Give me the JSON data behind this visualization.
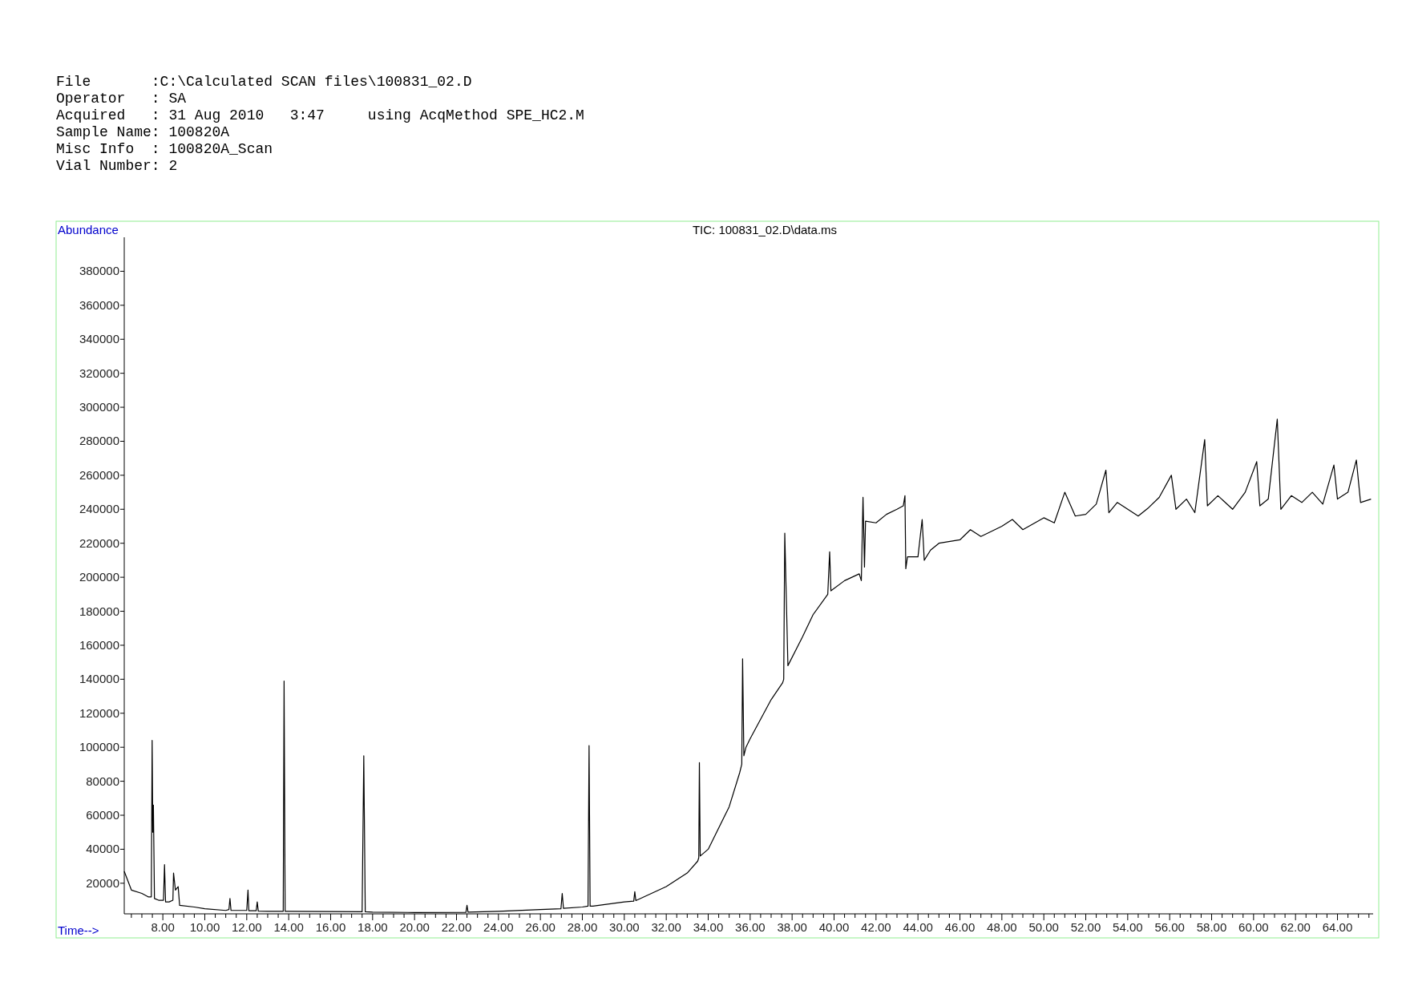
{
  "chart_data": {
    "type": "line",
    "title": "TIC: 100831_02.D\\data.ms",
    "xlabel": "Time-->",
    "ylabel": "Abundance",
    "annotations": [
      "File       :C:\\Calculated SCAN files\\100831_02.D",
      "Operator   : SA",
      "Acquired   : 31 Aug 2010   3:47     using AcqMethod SPE_HC2.M",
      "Sample Name: 100820A",
      "Misc Info  : 100820A_Scan",
      "Vial Number: 2"
    ],
    "x": [
      6.16,
      6.5,
      7.0,
      7.3,
      7.45,
      7.49,
      7.52,
      7.55,
      7.6,
      7.8,
      8.03,
      8.08,
      8.13,
      8.3,
      8.48,
      8.51,
      8.6,
      8.73,
      8.8,
      9.5,
      10.0,
      11.0,
      11.15,
      11.2,
      11.25,
      12.0,
      12.06,
      12.1,
      12.45,
      12.5,
      12.55,
      13.0,
      13.74,
      13.78,
      13.83,
      14.0,
      17.5,
      17.58,
      17.65,
      18.0,
      20.0,
      22.45,
      22.5,
      22.55,
      24.0,
      26.0,
      26.98,
      27.04,
      27.1,
      28.0,
      28.27,
      28.32,
      28.37,
      28.5,
      30.0,
      30.45,
      30.5,
      30.55,
      32.0,
      33.0,
      33.5,
      33.55,
      33.58,
      33.62,
      34.0,
      35.0,
      35.5,
      35.6,
      35.64,
      35.7,
      35.8,
      36.0,
      37.0,
      37.55,
      37.6,
      37.65,
      37.8,
      38.5,
      39.0,
      39.7,
      39.79,
      39.85,
      40.5,
      41.2,
      41.3,
      41.38,
      41.45,
      41.5,
      42.0,
      42.5,
      43.0,
      43.3,
      43.38,
      43.42,
      43.5,
      44.0,
      44.2,
      44.3,
      44.6,
      45.0,
      46.0,
      46.5,
      47.0,
      48.0,
      48.5,
      49.0,
      50.0,
      50.5,
      51.0,
      51.5,
      52.0,
      52.5,
      52.96,
      53.1,
      53.5,
      54.0,
      54.5,
      55.0,
      55.5,
      56.08,
      56.3,
      56.8,
      57.2,
      57.67,
      57.8,
      58.3,
      59.0,
      59.6,
      60.15,
      60.3,
      60.7,
      61.13,
      61.3,
      61.8,
      62.3,
      62.8,
      63.3,
      63.83,
      64.0,
      64.5,
      64.9,
      65.1,
      65.6
    ],
    "values": [
      27000,
      16000,
      14000,
      12000,
      12000,
      104000,
      50000,
      66000,
      11000,
      10000,
      10000,
      31000,
      9000,
      9000,
      10000,
      26000,
      16000,
      18000,
      7000,
      6000,
      5000,
      4000,
      4500,
      11000,
      4000,
      4000,
      16000,
      3800,
      3800,
      9000,
      3600,
      3500,
      3500,
      139000,
      3500,
      3500,
      3200,
      95000,
      3200,
      3000,
      2800,
      2900,
      7000,
      3000,
      3500,
      4500,
      5000,
      14000,
      5200,
      6000,
      6500,
      101000,
      6500,
      6500,
      9000,
      9500,
      15000,
      9800,
      18000,
      26000,
      33000,
      35000,
      91000,
      36000,
      40000,
      65000,
      85000,
      90000,
      152000,
      95000,
      100000,
      105000,
      128000,
      138000,
      140000,
      226000,
      148000,
      165000,
      178000,
      190000,
      215000,
      192000,
      198000,
      202000,
      198000,
      247000,
      206000,
      233000,
      232000,
      237000,
      240000,
      242000,
      248000,
      205000,
      212000,
      212000,
      234000,
      210000,
      216000,
      220000,
      222000,
      228000,
      224000,
      230000,
      234000,
      228000,
      235000,
      232000,
      250000,
      236000,
      237000,
      243000,
      263000,
      238000,
      244000,
      240000,
      236000,
      241000,
      247000,
      260000,
      240000,
      246000,
      238000,
      281000,
      242000,
      248000,
      240000,
      250000,
      268000,
      242000,
      246000,
      293000,
      240000,
      248000,
      244000,
      250000,
      243000,
      266000,
      246000,
      250000,
      269000,
      244000,
      246000
    ],
    "color": "#000000",
    "xlim": [
      6.16,
      65.7
    ],
    "ylim": [
      2000,
      400000
    ],
    "xticks": [
      {
        "value": 6.5,
        "label": null
      },
      {
        "value": 7,
        "label": null
      },
      {
        "value": 7.5,
        "label": null
      },
      {
        "value": 8,
        "label": "8.00"
      },
      {
        "value": 8.5,
        "label": null
      },
      {
        "value": 9,
        "label": null
      },
      {
        "value": 9.5,
        "label": null
      },
      {
        "value": 10,
        "label": "10.00"
      },
      {
        "value": 10.5,
        "label": null
      },
      {
        "value": 11,
        "label": null
      },
      {
        "value": 11.5,
        "label": null
      },
      {
        "value": 12,
        "label": "12.00"
      },
      {
        "value": 12.5,
        "label": null
      },
      {
        "value": 13,
        "label": null
      },
      {
        "value": 13.5,
        "label": null
      },
      {
        "value": 14,
        "label": "14.00"
      },
      {
        "value": 14.5,
        "label": null
      },
      {
        "value": 15,
        "label": null
      },
      {
        "value": 15.5,
        "label": null
      },
      {
        "value": 16,
        "label": "16.00"
      },
      {
        "value": 16.5,
        "label": null
      },
      {
        "value": 17,
        "label": null
      },
      {
        "value": 17.5,
        "label": null
      },
      {
        "value": 18,
        "label": "18.00"
      },
      {
        "value": 18.5,
        "label": null
      },
      {
        "value": 19,
        "label": null
      },
      {
        "value": 19.5,
        "label": null
      },
      {
        "value": 20,
        "label": "20.00"
      },
      {
        "value": 20.5,
        "label": null
      },
      {
        "value": 21,
        "label": null
      },
      {
        "value": 21.5,
        "label": null
      },
      {
        "value": 22,
        "label": "22.00"
      },
      {
        "value": 22.5,
        "label": null
      },
      {
        "value": 23,
        "label": null
      },
      {
        "value": 23.5,
        "label": null
      },
      {
        "value": 24,
        "label": "24.00"
      },
      {
        "value": 24.5,
        "label": null
      },
      {
        "value": 25,
        "label": null
      },
      {
        "value": 25.5,
        "label": null
      },
      {
        "value": 26,
        "label": "26.00"
      },
      {
        "value": 26.5,
        "label": null
      },
      {
        "value": 27,
        "label": null
      },
      {
        "value": 27.5,
        "label": null
      },
      {
        "value": 28,
        "label": "28.00"
      },
      {
        "value": 28.5,
        "label": null
      },
      {
        "value": 29,
        "label": null
      },
      {
        "value": 29.5,
        "label": null
      },
      {
        "value": 30,
        "label": "30.00"
      },
      {
        "value": 30.5,
        "label": null
      },
      {
        "value": 31,
        "label": null
      },
      {
        "value": 31.5,
        "label": null
      },
      {
        "value": 32,
        "label": "32.00"
      },
      {
        "value": 32.5,
        "label": null
      },
      {
        "value": 33,
        "label": null
      },
      {
        "value": 33.5,
        "label": null
      },
      {
        "value": 34,
        "label": "34.00"
      },
      {
        "value": 34.5,
        "label": null
      },
      {
        "value": 35,
        "label": null
      },
      {
        "value": 35.5,
        "label": null
      },
      {
        "value": 36,
        "label": "36.00"
      },
      {
        "value": 36.5,
        "label": null
      },
      {
        "value": 37,
        "label": null
      },
      {
        "value": 37.5,
        "label": null
      },
      {
        "value": 38,
        "label": "38.00"
      },
      {
        "value": 38.5,
        "label": null
      },
      {
        "value": 39,
        "label": null
      },
      {
        "value": 39.5,
        "label": null
      },
      {
        "value": 40,
        "label": "40.00"
      },
      {
        "value": 40.5,
        "label": null
      },
      {
        "value": 41,
        "label": null
      },
      {
        "value": 41.5,
        "label": null
      },
      {
        "value": 42,
        "label": "42.00"
      },
      {
        "value": 42.5,
        "label": null
      },
      {
        "value": 43,
        "label": null
      },
      {
        "value": 43.5,
        "label": null
      },
      {
        "value": 44,
        "label": "44.00"
      },
      {
        "value": 44.5,
        "label": null
      },
      {
        "value": 45,
        "label": null
      },
      {
        "value": 45.5,
        "label": null
      },
      {
        "value": 46,
        "label": "46.00"
      },
      {
        "value": 46.5,
        "label": null
      },
      {
        "value": 47,
        "label": null
      },
      {
        "value": 47.5,
        "label": null
      },
      {
        "value": 48,
        "label": "48.00"
      },
      {
        "value": 48.5,
        "label": null
      },
      {
        "value": 49,
        "label": null
      },
      {
        "value": 49.5,
        "label": null
      },
      {
        "value": 50,
        "label": "50.00"
      },
      {
        "value": 50.5,
        "label": null
      },
      {
        "value": 51,
        "label": null
      },
      {
        "value": 51.5,
        "label": null
      },
      {
        "value": 52,
        "label": "52.00"
      },
      {
        "value": 52.5,
        "label": null
      },
      {
        "value": 53,
        "label": null
      },
      {
        "value": 53.5,
        "label": null
      },
      {
        "value": 54,
        "label": "54.00"
      },
      {
        "value": 54.5,
        "label": null
      },
      {
        "value": 55,
        "label": null
      },
      {
        "value": 55.5,
        "label": null
      },
      {
        "value": 56,
        "label": "56.00"
      },
      {
        "value": 56.5,
        "label": null
      },
      {
        "value": 57,
        "label": null
      },
      {
        "value": 57.5,
        "label": null
      },
      {
        "value": 58,
        "label": "58.00"
      },
      {
        "value": 58.5,
        "label": null
      },
      {
        "value": 59,
        "label": null
      },
      {
        "value": 59.5,
        "label": null
      },
      {
        "value": 60,
        "label": "60.00"
      },
      {
        "value": 60.5,
        "label": null
      },
      {
        "value": 61,
        "label": null
      },
      {
        "value": 61.5,
        "label": null
      },
      {
        "value": 62,
        "label": "62.00"
      },
      {
        "value": 62.5,
        "label": null
      },
      {
        "value": 63,
        "label": null
      },
      {
        "value": 63.5,
        "label": null
      },
      {
        "value": 64,
        "label": "64.00"
      },
      {
        "value": 64.5,
        "label": null
      },
      {
        "value": 65,
        "label": null
      },
      {
        "value": 65.5,
        "label": null
      }
    ],
    "yticks": [
      20000,
      40000,
      60000,
      80000,
      100000,
      120000,
      140000,
      160000,
      180000,
      200000,
      220000,
      240000,
      260000,
      280000,
      300000,
      320000,
      340000,
      360000,
      380000
    ],
    "marker": "none",
    "line_style": "solid"
  }
}
